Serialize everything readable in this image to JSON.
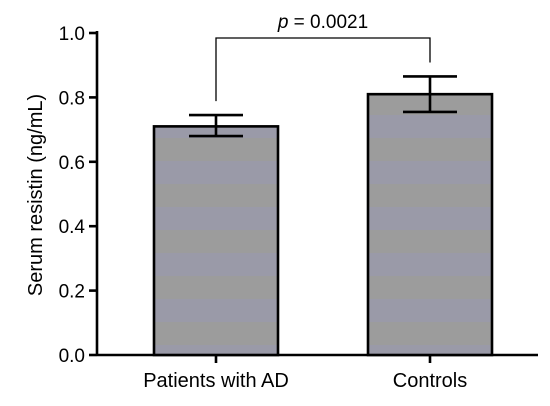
{
  "chart_data": {
    "type": "bar",
    "categories": [
      "Patients with AD",
      "Controls"
    ],
    "values": [
      0.71,
      0.81
    ],
    "errors": [
      {
        "low": 0.68,
        "high": 0.745
      },
      {
        "low": 0.755,
        "high": 0.865
      }
    ],
    "ylabel": "Serum resistin (ng/mL)",
    "xlabel": "",
    "ylim": [
      0.0,
      1.0
    ],
    "yticks": [
      0.0,
      0.2,
      0.4,
      0.6,
      0.8,
      1.0
    ],
    "ytick_labels": [
      "0.0",
      "0.2",
      "0.4",
      "0.6",
      "0.8",
      "1.0"
    ],
    "annotation": {
      "italic_part": "p",
      "rest": " = 0.0021"
    },
    "colors": {
      "bar_band_a": "#9c9c9c",
      "bar_band_b": "#9a9aa8",
      "axis": "#000000"
    },
    "grid": false
  }
}
